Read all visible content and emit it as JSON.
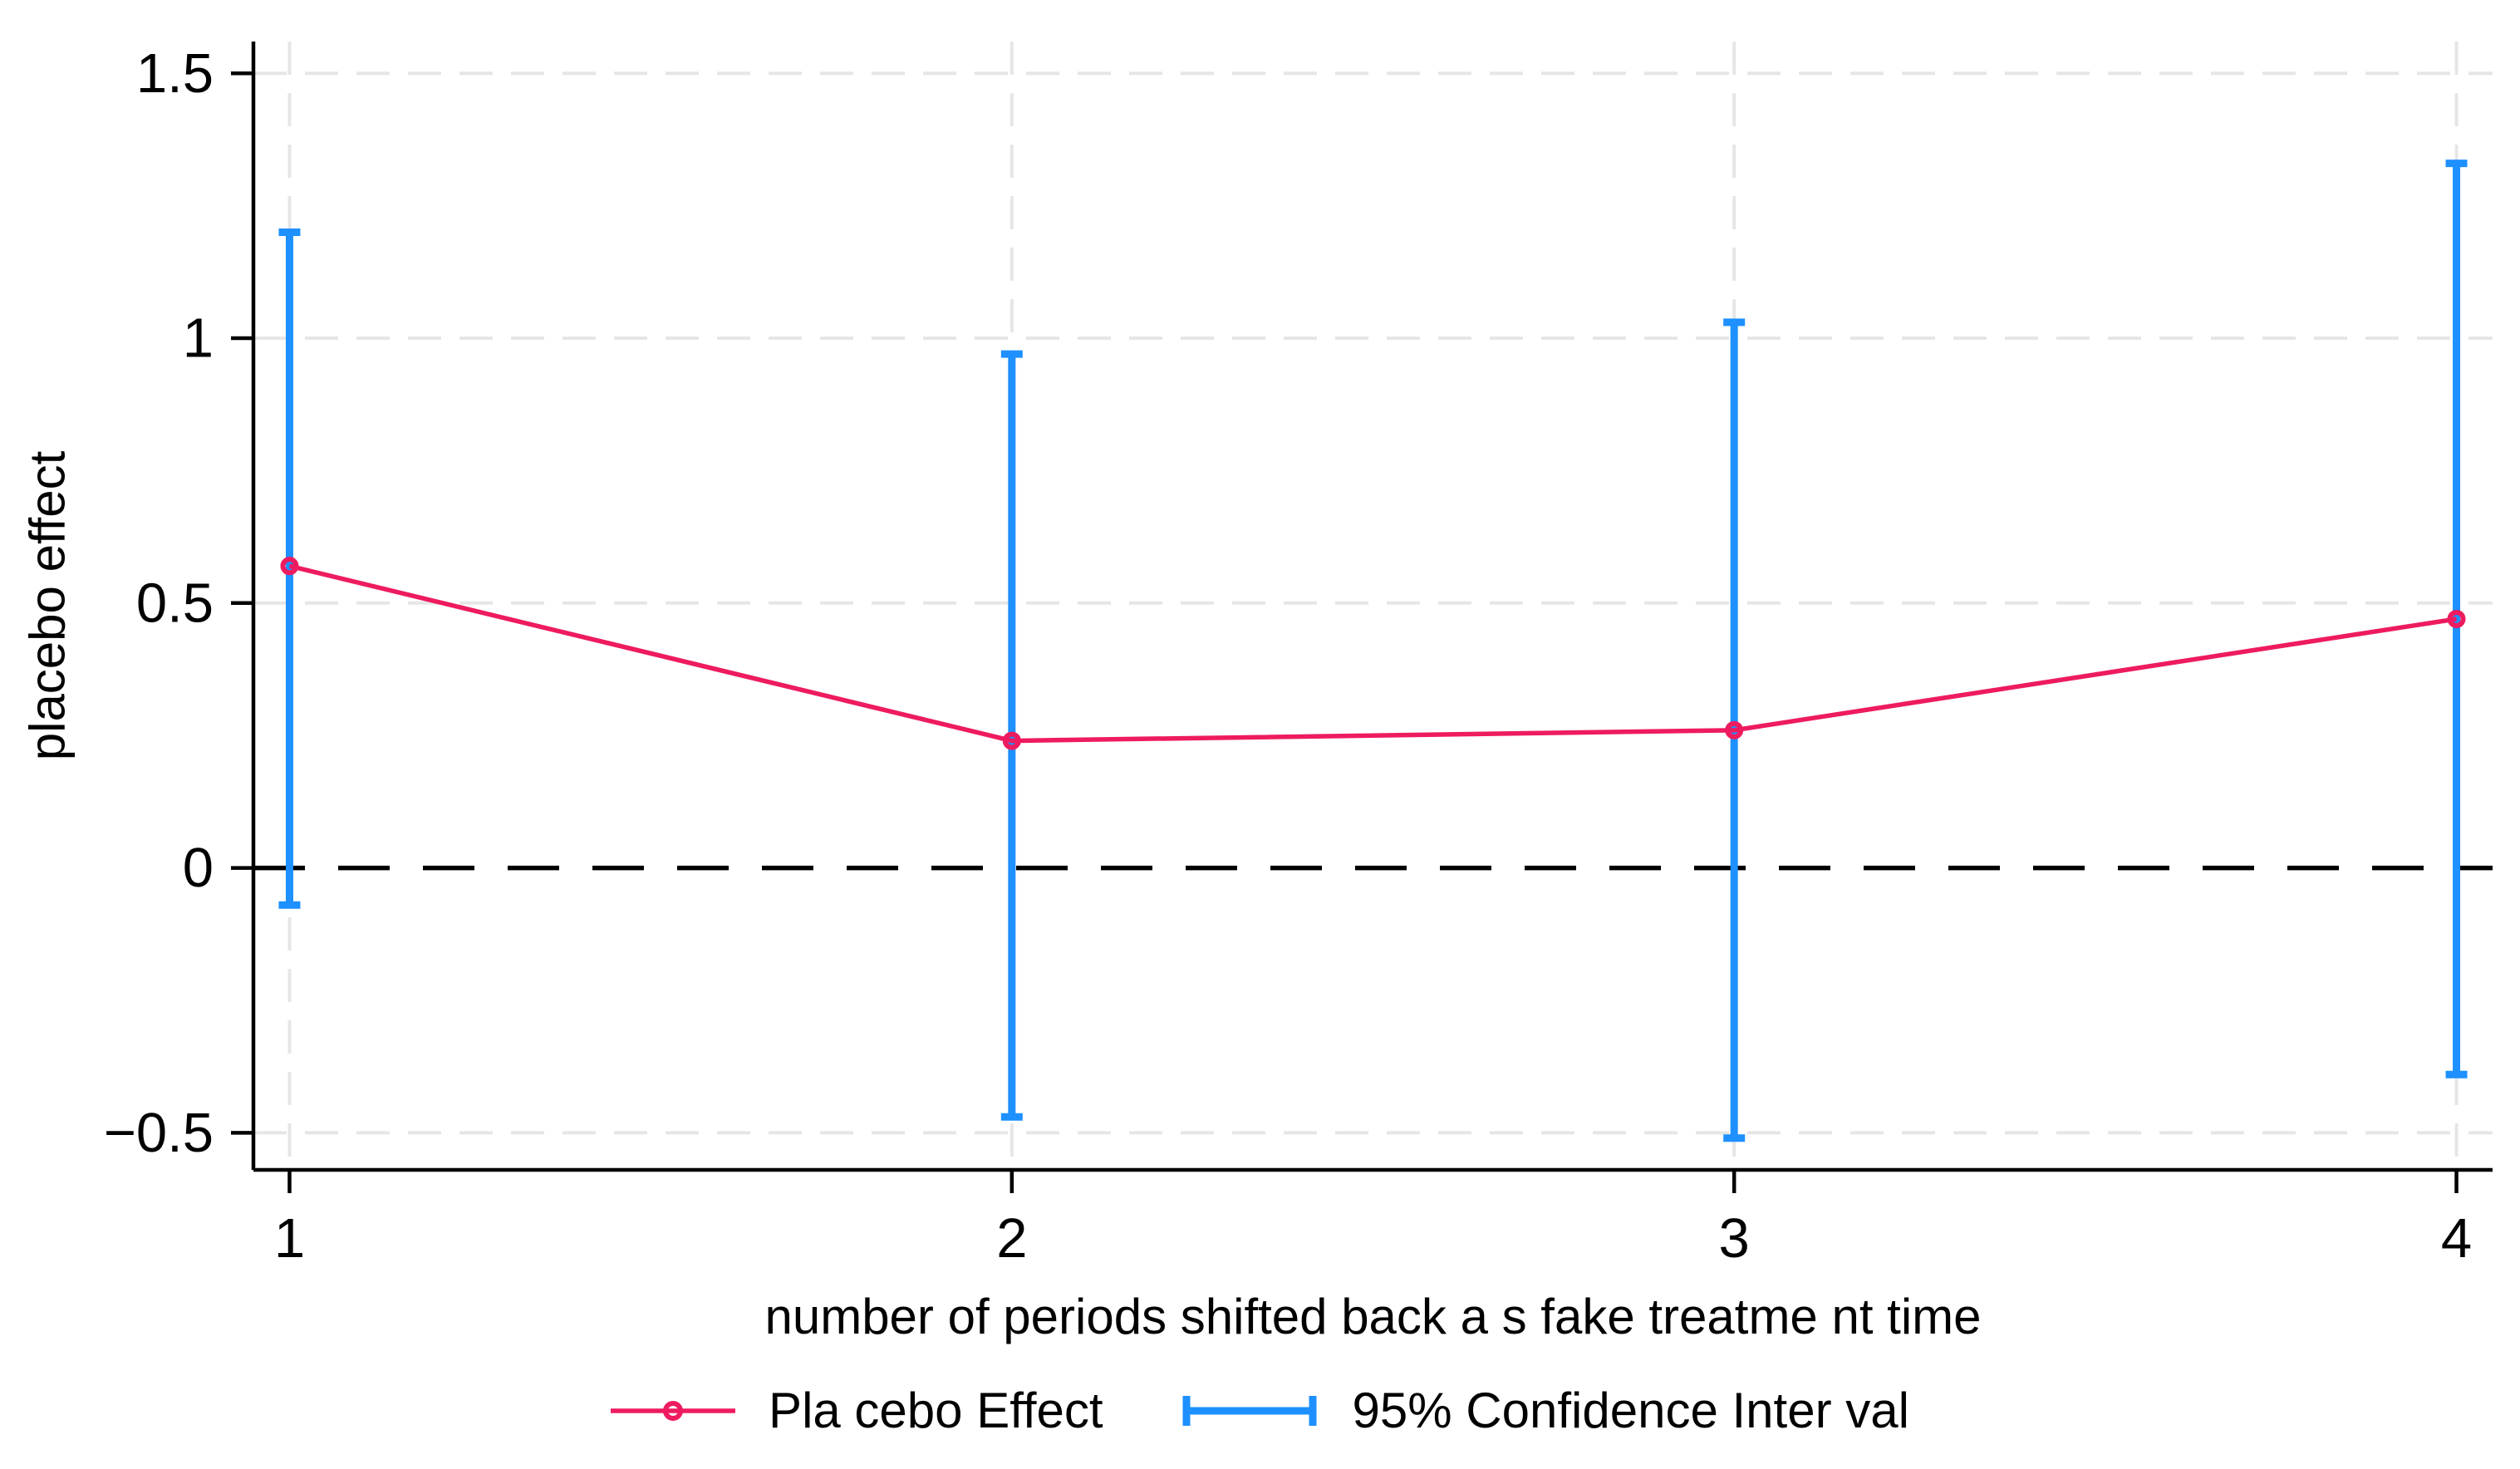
{
  "figure": {
    "background": "#ffffff",
    "description": "Placebo test event-study style plot with point estimates and confidence intervals"
  },
  "chart_data": {
    "type": "line",
    "title": "",
    "xlabel": "number of periods shifted back a s fake treatme nt time",
    "ylabel": "placebo effect",
    "x_ticks": [
      1,
      2,
      3,
      4
    ],
    "x_tick_labels": [
      "1",
      "2",
      "3",
      "4"
    ],
    "y_ticks": [
      -0.5,
      0,
      0.5,
      1,
      1.5
    ],
    "y_tick_labels": [
      "−0.5",
      "0",
      "0.5",
      "1",
      "1.5"
    ],
    "xlim": [
      0.95,
      4.05
    ],
    "ylim": [
      -0.57,
      1.56
    ],
    "grid": true,
    "zero_reference_line": true,
    "legend_position": "bottom-center",
    "series": [
      {
        "name": "placebo-effect",
        "label": "Pla cebo Effect",
        "marker": "circle",
        "x": [
          1,
          2,
          3,
          4
        ],
        "y": [
          0.57,
          0.24,
          0.26,
          0.47
        ]
      },
      {
        "name": "confidence-interval-95",
        "label": "95% Confidence Inter val",
        "x": [
          1,
          2,
          3,
          4
        ],
        "ci_low": [
          -0.07,
          -0.47,
          -0.51,
          -0.39
        ],
        "ci_high": [
          1.2,
          0.97,
          1.03,
          1.33
        ]
      }
    ],
    "colors": {
      "effect_line": "#ee1b5f",
      "ci_line": "#1e90ff",
      "gridline": "#e6e6e6",
      "zero_line": "#000000",
      "axis": "#000000",
      "text": "#000000"
    }
  }
}
